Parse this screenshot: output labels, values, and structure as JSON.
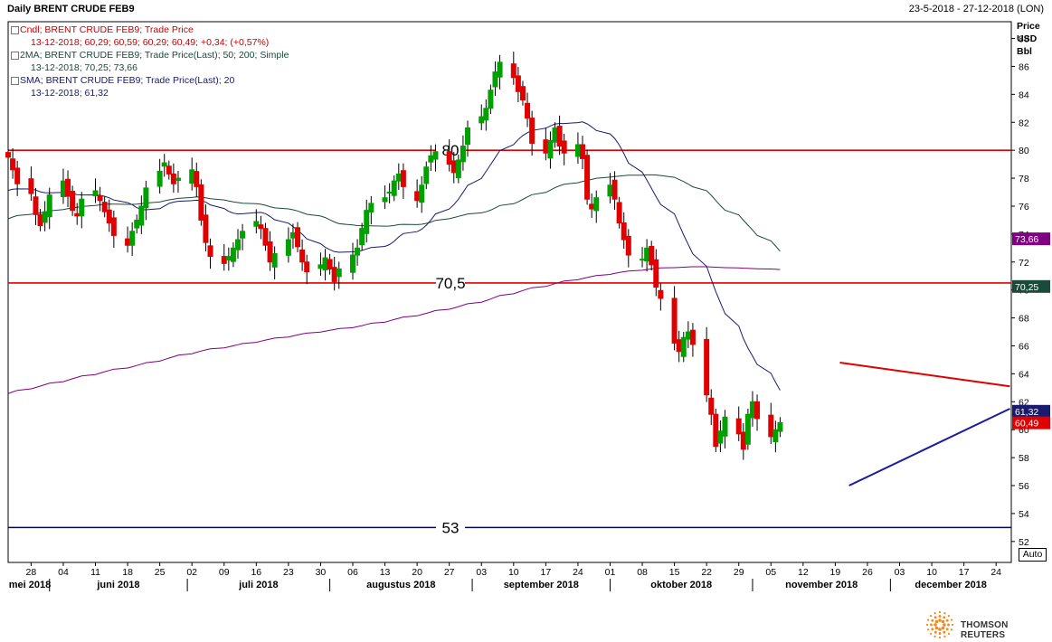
{
  "header": {
    "title": "Daily BRENT CRUDE FEB9",
    "date_range": "23-5-2018 - 27-12-2018 (LON)"
  },
  "legend": [
    {
      "label": "Cndl; BRENT CRUDE FEB9; Trade Price",
      "values": "13-12-2018; 60,29; 60,59; 60,29; 60,49; +0,34; (+0,57%)",
      "color": "#cc0000"
    },
    {
      "label": "2MA; BRENT CRUDE FEB9; Trade Price(Last); 50; 200; Simple",
      "values": "13-12-2018; 70,25; 73,66",
      "color": "#1a4a3a"
    },
    {
      "label": "SMA; BRENT CRUDE FEB9; Trade Price(Last); 20",
      "values": "13-12-2018; 61,32",
      "color": "#1a1a6e"
    }
  ],
  "axis_header": [
    "Price",
    "USD",
    "Bbl"
  ],
  "auto_label": "Auto",
  "brand": "THOMSON REUTERS",
  "colors": {
    "up": "#00a000",
    "down": "#e00000",
    "ma50": "#1a4a3a",
    "ma200": "#800080",
    "sma20": "#1a1a6e",
    "level": "#e00000",
    "support": "#000080",
    "trend": "#1a1aa0"
  },
  "chart_data": {
    "type": "candlestick",
    "title": "Daily BRENT CRUDE FEB9",
    "ylabel": "Price USD Bbl",
    "ylim": [
      50.5,
      89.2
    ],
    "y_ticks": [
      52,
      54,
      56,
      58,
      60,
      62,
      64,
      66,
      68,
      70,
      72,
      74,
      76,
      78,
      80,
      82,
      84,
      86,
      88
    ],
    "x_ticks": [
      "28",
      "04",
      "11",
      "18",
      "25",
      "02",
      "09",
      "16",
      "23",
      "30",
      "06",
      "13",
      "20",
      "27",
      "03",
      "10",
      "17",
      "24",
      "01",
      "08",
      "15",
      "22",
      "29",
      "05",
      "12",
      "19",
      "26",
      "03",
      "10",
      "17",
      "24"
    ],
    "months": [
      "mei 2018",
      "juni 2018",
      "juli 2018",
      "augustus 2018",
      "september 2018",
      "oktober 2018",
      "november 2018",
      "december 2018"
    ],
    "horizontal_levels": [
      {
        "value": 80,
        "label": "80"
      },
      {
        "value": 70.5,
        "label": "70,5"
      },
      {
        "value": 53,
        "label": "53"
      }
    ],
    "price_tags": [
      {
        "value": 73.66,
        "label": "73,66"
      },
      {
        "value": 70.25,
        "label": "70,25"
      },
      {
        "value": 61.32,
        "label": "61,32"
      },
      {
        "value": 60.49,
        "label": "60,49"
      }
    ],
    "close_series": [
      79.5,
      78.6,
      77.6,
      76.9,
      75.4,
      74.6,
      75.6,
      76.8,
      77.8,
      76.7,
      75.7,
      75.3,
      76.5,
      77.1,
      76.4,
      75.6,
      74.8,
      73.9,
      73.2,
      74.2,
      75.0,
      76.0,
      77.3,
      78.5,
      79.1,
      78.3,
      77.6,
      78.0,
      78.6,
      77.4,
      75.0,
      73.4,
      72.4,
      71.9,
      72.4,
      73.0,
      73.6,
      74.2,
      74.9,
      74.4,
      73.2,
      72.0,
      72.6,
      73.6,
      74.1,
      73.1,
      72.0,
      71.3,
      71.8,
      72.3,
      71.5,
      70.6,
      71.5,
      72.5,
      73.0,
      74.4,
      75.7,
      76.2,
      76.6,
      77.0,
      77.8,
      78.3,
      77.4,
      76.4,
      77.5,
      78.8,
      79.6,
      79.9,
      79.0,
      78.4,
      79.3,
      80.3,
      81.6,
      82.4,
      83.0,
      84.3,
      85.6,
      86.3,
      85.2,
      84.2,
      83.6,
      82.3,
      80.5,
      79.8,
      80.7,
      81.6,
      80.3,
      79.8,
      80.4,
      79.4,
      76.5,
      75.8,
      76.6,
      77.5,
      76.5,
      74.8,
      73.6,
      72.5,
      72.2,
      73.0,
      71.8,
      70.2,
      69.4,
      66.2,
      65.6,
      66.6,
      67.0,
      66.1,
      62.5,
      61.1,
      58.8,
      59.9,
      60.9,
      59.7,
      58.6,
      61.1,
      62.0,
      60.8,
      59.5,
      60.0,
      60.5
    ],
    "series": [
      {
        "name": "2MA 50",
        "last": 70.25
      },
      {
        "name": "2MA 200",
        "last": 73.66
      },
      {
        "name": "SMA 20",
        "last": 61.32
      }
    ],
    "trendlines": [
      {
        "name": "resistance",
        "from": {
          "x": "2018-11-20",
          "y": 64.8
        },
        "to": {
          "x": "2018-12-27",
          "y": 63.1
        }
      },
      {
        "name": "support",
        "from": {
          "x": "2018-11-22",
          "y": 56.0
        },
        "to": {
          "x": "2018-12-27",
          "y": 61.5
        }
      }
    ]
  }
}
